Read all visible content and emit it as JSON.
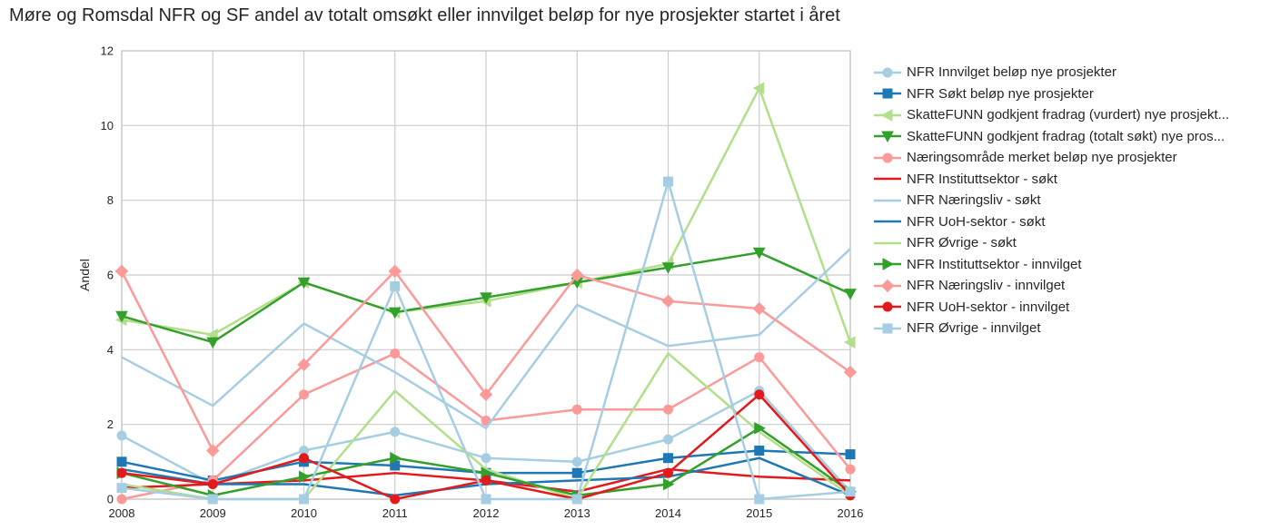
{
  "chart_data": {
    "type": "line",
    "title": "Møre og Romsdal NFR og SF andel av totalt omsøkt eller innvilget beløp for nye prosjekter startet i året",
    "xlabel": "",
    "ylabel": "Andel",
    "x": [
      2008,
      2009,
      2010,
      2011,
      2012,
      2013,
      2014,
      2015,
      2016
    ],
    "xlim": [
      2008,
      2016
    ],
    "ylim": [
      0,
      12
    ],
    "yticks": [
      0,
      2,
      4,
      6,
      8,
      10,
      12
    ],
    "grid": true,
    "legend_position": "outside-right",
    "series": [
      {
        "name": "NFR Innvilget beløp nye prosjekter",
        "color": "#a6cee3",
        "marker": "circle",
        "values": [
          1.7,
          0.4,
          1.3,
          1.8,
          1.1,
          1.0,
          1.6,
          2.9,
          0.2
        ]
      },
      {
        "name": "NFR Søkt beløp nye prosjekter",
        "color": "#1f78b4",
        "marker": "square",
        "values": [
          1.0,
          0.5,
          1.0,
          0.9,
          0.7,
          0.7,
          1.1,
          1.3,
          1.2
        ]
      },
      {
        "name": "SkatteFUNN godkjent fradrag (vurdert) nye prosjekt...",
        "color": "#b2df8a",
        "marker": "triangle-left",
        "values": [
          4.8,
          4.4,
          5.8,
          5.0,
          5.3,
          5.8,
          6.3,
          11.0,
          4.2
        ]
      },
      {
        "name": "SkatteFUNN godkjent fradrag (totalt søkt) nye pros...",
        "color": "#33a02c",
        "marker": "triangle-down",
        "values": [
          4.9,
          4.2,
          5.8,
          5.0,
          5.4,
          5.8,
          6.2,
          6.6,
          5.5
        ]
      },
      {
        "name": "Næringsområde merket beløp nye prosjekter",
        "color": "#fb9a99",
        "marker": "circle",
        "values": [
          0.0,
          0.5,
          2.8,
          3.9,
          2.1,
          2.4,
          2.4,
          3.8,
          0.8
        ]
      },
      {
        "name": "NFR Instituttsektor - søkt",
        "color": "#e31a1c",
        "marker": "none",
        "values": [
          0.3,
          0.4,
          0.5,
          0.7,
          0.5,
          0.2,
          0.8,
          0.6,
          0.5
        ]
      },
      {
        "name": "NFR Næringsliv - søkt",
        "color": "#a6cee3",
        "marker": "none",
        "values": [
          3.8,
          2.5,
          4.7,
          3.4,
          1.9,
          5.2,
          4.1,
          4.4,
          6.7
        ]
      },
      {
        "name": "NFR UoH-sektor - søkt",
        "color": "#1f78b4",
        "marker": "none",
        "values": [
          0.8,
          0.4,
          0.4,
          0.1,
          0.4,
          0.5,
          0.6,
          1.1,
          0.1
        ]
      },
      {
        "name": "NFR Øvrige - søkt",
        "color": "#b2df8a",
        "marker": "none",
        "values": [
          0.4,
          0.0,
          0.0,
          2.9,
          0.8,
          0.0,
          3.9,
          1.8,
          0.1
        ]
      },
      {
        "name": "NFR Instituttsektor - innvilget",
        "color": "#33a02c",
        "marker": "triangle-right",
        "values": [
          0.7,
          0.1,
          0.6,
          1.1,
          0.7,
          0.1,
          0.4,
          1.9,
          0.2
        ]
      },
      {
        "name": "NFR Næringsliv - innvilget",
        "color": "#fb9a99",
        "marker": "diamond",
        "values": [
          6.1,
          1.3,
          3.6,
          6.1,
          2.8,
          6.0,
          5.3,
          5.1,
          3.4
        ]
      },
      {
        "name": "NFR UoH-sektor - innvilget",
        "color": "#e31a1c",
        "marker": "circle",
        "values": [
          0.7,
          0.4,
          1.1,
          0.0,
          0.5,
          0.0,
          0.7,
          2.8,
          0.1
        ]
      },
      {
        "name": "NFR Øvrige - innvilget",
        "color": "#a6cee3",
        "marker": "square",
        "values": [
          0.3,
          0.0,
          0.0,
          5.7,
          0.0,
          0.0,
          8.5,
          0.0,
          0.2
        ]
      }
    ]
  }
}
